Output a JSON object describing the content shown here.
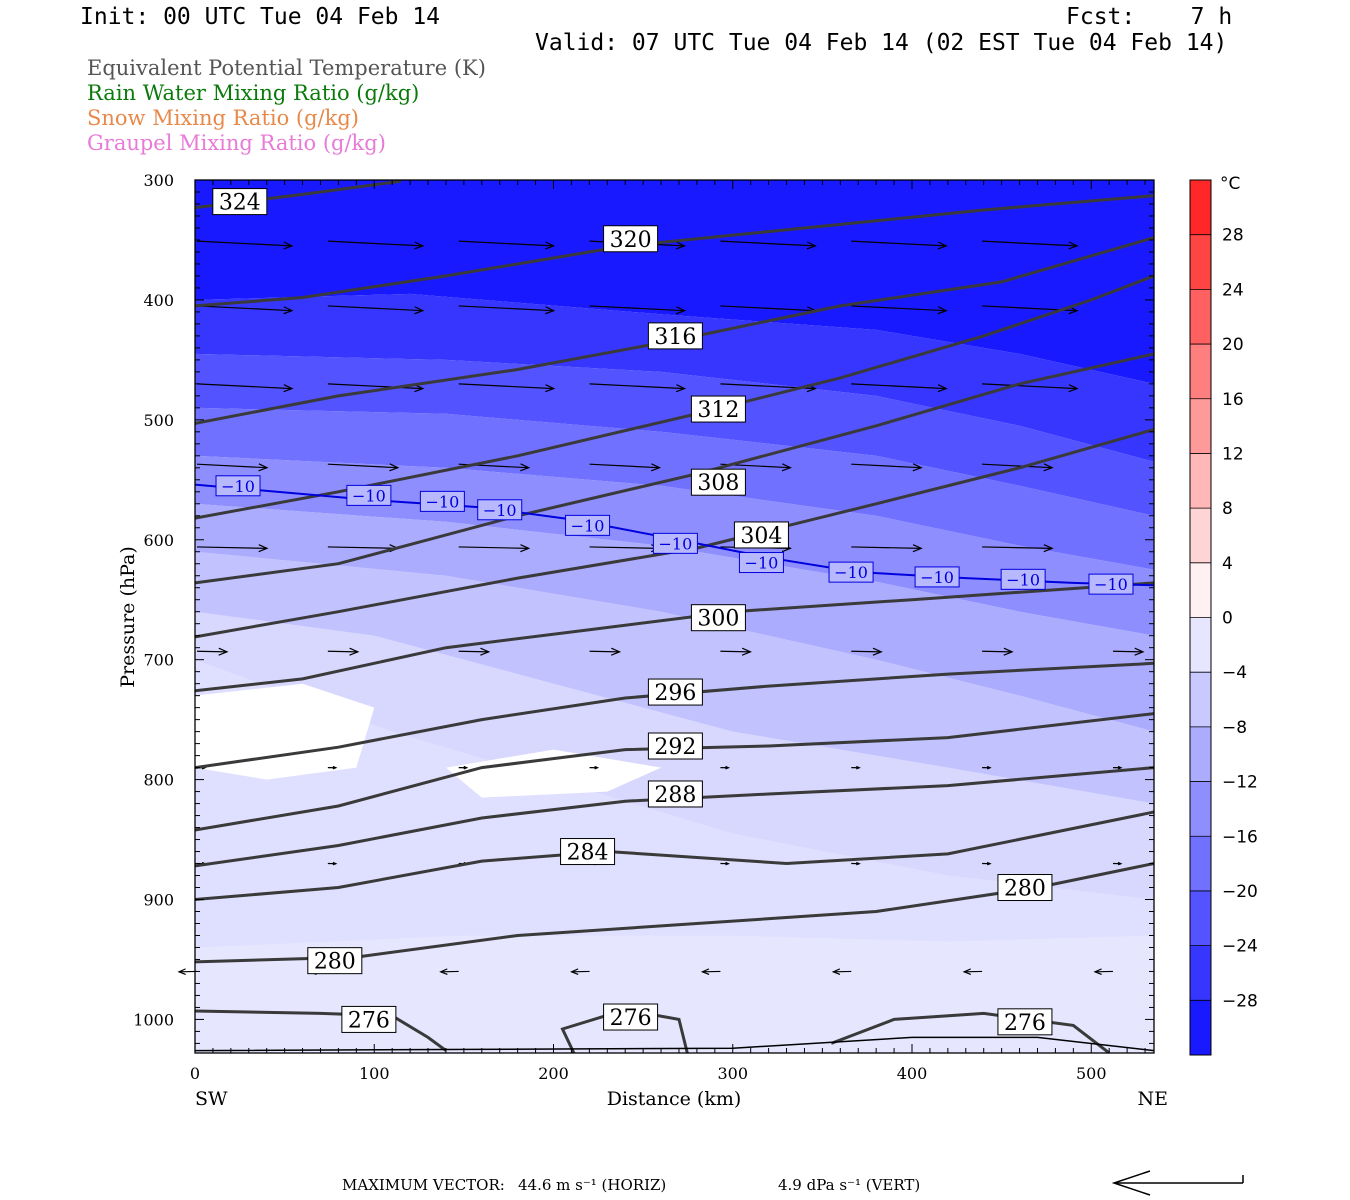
{
  "header": {
    "init": "Init: 00 UTC Tue 04 Feb 14",
    "fcst": "Fcst:    7 h",
    "valid": "Valid: 07 UTC Tue 04 Feb 14 (02 EST Tue 04 Feb 14)"
  },
  "legend": [
    {
      "label": "Equivalent Potential Temperature (K)",
      "color": "#555555"
    },
    {
      "label": "Rain Water Mixing Ratio (g/kg)",
      "color": "#0a7a0a"
    },
    {
      "label": "Snow Mixing Ratio (g/kg)",
      "color": "#e8894a"
    },
    {
      "label": "Graupel Mixing Ratio (g/kg)",
      "color": "#e87ad8"
    }
  ],
  "footer": {
    "max_vector_label": "MAXIMUM VECTOR:",
    "horiz": "44.6 m s⁻¹ (HORIZ)",
    "vert": "4.9 dPa s⁻¹ (VERT)"
  },
  "chart_data": {
    "type": "cross-section",
    "xlabel": "Distance (km)",
    "ylabel": "Pressure (hPa)",
    "xlim": [
      0,
      535
    ],
    "ylim": [
      1028,
      300
    ],
    "x_ticks": [
      0,
      100,
      200,
      300,
      400,
      500
    ],
    "y_ticks": [
      300,
      400,
      500,
      600,
      700,
      800,
      900,
      1000
    ],
    "x_end_labels": {
      "left": "SW",
      "right": "NE"
    },
    "colorbar": {
      "unit": "°C",
      "tick_labels": [
        "28",
        "24",
        "20",
        "16",
        "12",
        "8",
        "4",
        "0",
        "−4",
        "−8",
        "−12",
        "−16",
        "−20",
        "−24",
        "−28"
      ],
      "tick_values": [
        28,
        24,
        20,
        16,
        12,
        8,
        4,
        0,
        -4,
        -8,
        -12,
        -16,
        -20,
        -24,
        -28
      ],
      "range": [
        -32,
        32
      ]
    },
    "theta_e_labels": [
      {
        "text": "324",
        "x": 25,
        "p": 318
      },
      {
        "text": "320",
        "x": 243,
        "p": 349
      },
      {
        "text": "316",
        "x": 268,
        "p": 430
      },
      {
        "text": "312",
        "x": 292,
        "p": 491
      },
      {
        "text": "308",
        "x": 292,
        "p": 552
      },
      {
        "text": "304",
        "x": 316,
        "p": 596
      },
      {
        "text": "300",
        "x": 292,
        "p": 665
      },
      {
        "text": "296",
        "x": 268,
        "p": 727
      },
      {
        "text": "292",
        "x": 268,
        "p": 772
      },
      {
        "text": "288",
        "x": 268,
        "p": 812
      },
      {
        "text": "284",
        "x": 219,
        "p": 860
      },
      {
        "text": "280",
        "x": 463,
        "p": 890
      },
      {
        "text": "280",
        "x": 78,
        "p": 951
      },
      {
        "text": "276",
        "x": 97,
        "p": 1000
      },
      {
        "text": "276",
        "x": 243,
        "p": 998
      },
      {
        "text": "276",
        "x": 463,
        "p": 1002
      }
    ],
    "theta_e_contours": [
      {
        "value": 324,
        "points": [
          [
            0,
            323
          ],
          [
            60,
            312
          ],
          [
            115,
            301
          ]
        ]
      },
      {
        "value": 320,
        "points": [
          [
            0,
            405
          ],
          [
            60,
            398
          ],
          [
            140,
            380
          ],
          [
            240,
            355
          ],
          [
            340,
            340
          ],
          [
            440,
            325
          ],
          [
            535,
            313
          ]
        ]
      },
      {
        "value": 316,
        "points": [
          [
            0,
            503
          ],
          [
            80,
            480
          ],
          [
            180,
            458
          ],
          [
            270,
            433
          ],
          [
            360,
            405
          ],
          [
            450,
            385
          ],
          [
            535,
            348
          ]
        ]
      },
      {
        "value": 312,
        "points": [
          [
            0,
            582
          ],
          [
            80,
            560
          ],
          [
            180,
            530
          ],
          [
            280,
            495
          ],
          [
            360,
            465
          ],
          [
            440,
            430
          ],
          [
            500,
            400
          ],
          [
            535,
            380
          ]
        ]
      },
      {
        "value": 308,
        "points": [
          [
            0,
            636
          ],
          [
            80,
            620
          ],
          [
            180,
            580
          ],
          [
            280,
            545
          ],
          [
            380,
            505
          ],
          [
            460,
            470
          ],
          [
            535,
            445
          ]
        ]
      },
      {
        "value": 304,
        "points": [
          [
            0,
            681
          ],
          [
            80,
            660
          ],
          [
            180,
            632
          ],
          [
            280,
            607
          ],
          [
            380,
            570
          ],
          [
            460,
            540
          ],
          [
            535,
            508
          ]
        ]
      },
      {
        "value": 300,
        "points": [
          [
            0,
            726
          ],
          [
            60,
            716
          ],
          [
            140,
            690
          ],
          [
            220,
            675
          ],
          [
            300,
            660
          ],
          [
            400,
            650
          ],
          [
            535,
            636
          ]
        ]
      },
      {
        "value": 296,
        "points": [
          [
            0,
            790
          ],
          [
            80,
            773
          ],
          [
            160,
            750
          ],
          [
            240,
            732
          ],
          [
            320,
            722
          ],
          [
            420,
            712
          ],
          [
            535,
            703
          ]
        ]
      },
      {
        "value": 292,
        "points": [
          [
            0,
            842
          ],
          [
            80,
            822
          ],
          [
            160,
            790
          ],
          [
            240,
            775
          ],
          [
            320,
            772
          ],
          [
            420,
            765
          ],
          [
            535,
            745
          ]
        ]
      },
      {
        "value": 288,
        "points": [
          [
            0,
            872
          ],
          [
            80,
            855
          ],
          [
            160,
            832
          ],
          [
            240,
            818
          ],
          [
            320,
            812
          ],
          [
            420,
            805
          ],
          [
            535,
            790
          ]
        ]
      },
      {
        "value": 284,
        "points": [
          [
            0,
            900
          ],
          [
            80,
            890
          ],
          [
            160,
            868
          ],
          [
            230,
            860
          ],
          [
            330,
            870
          ],
          [
            420,
            862
          ],
          [
            535,
            827
          ]
        ]
      },
      {
        "value": 280,
        "points": [
          [
            0,
            952
          ],
          [
            90,
            948
          ],
          [
            180,
            930
          ],
          [
            280,
            920
          ],
          [
            380,
            910
          ],
          [
            470,
            890
          ],
          [
            535,
            870
          ]
        ]
      },
      {
        "value": 276,
        "points": [
          [
            0,
            993
          ],
          [
            70,
            995
          ],
          [
            110,
            997
          ],
          [
            130,
            1015
          ],
          [
            140,
            1026
          ]
        ]
      },
      {
        "value": 276,
        "points": [
          [
            212,
            1030
          ],
          [
            205,
            1008
          ],
          [
            240,
            992
          ],
          [
            270,
            1000
          ],
          [
            275,
            1030
          ]
        ]
      },
      {
        "value": 276,
        "points": [
          [
            355,
            1020
          ],
          [
            390,
            1000
          ],
          [
            440,
            995
          ],
          [
            490,
            1005
          ],
          [
            510,
            1028
          ]
        ]
      }
    ],
    "isotherm_minus10": {
      "value": -10,
      "points": [
        [
          0,
          554
        ],
        [
          100,
          567
        ],
        [
          160,
          573
        ],
        [
          210,
          583
        ],
        [
          270,
          600
        ],
        [
          320,
          615
        ],
        [
          370,
          627
        ],
        [
          430,
          632
        ],
        [
          490,
          636
        ],
        [
          535,
          638
        ]
      ],
      "label_text": "−10",
      "label_positions": [
        [
          24,
          555
        ],
        [
          97,
          563
        ],
        [
          138,
          568
        ],
        [
          170,
          575
        ],
        [
          219,
          588
        ],
        [
          268,
          603
        ],
        [
          316,
          619
        ],
        [
          366,
          627
        ],
        [
          414,
          631
        ],
        [
          462,
          633
        ],
        [
          511,
          637
        ]
      ]
    },
    "temperature_bands": [
      {
        "upper": [
          [
            0,
            300
          ],
          [
            535,
            300
          ]
        ],
        "lower": [
          [
            0,
            400
          ],
          [
            120,
            395
          ],
          [
            260,
            412
          ],
          [
            380,
            425
          ],
          [
            460,
            445
          ],
          [
            535,
            470
          ]
        ],
        "temp": -30
      },
      {
        "upper": [
          [
            0,
            400
          ],
          [
            120,
            395
          ],
          [
            260,
            412
          ],
          [
            380,
            425
          ],
          [
            460,
            445
          ],
          [
            535,
            470
          ]
        ],
        "lower": [
          [
            0,
            445
          ],
          [
            140,
            450
          ],
          [
            260,
            460
          ],
          [
            380,
            480
          ],
          [
            460,
            505
          ],
          [
            535,
            535
          ]
        ],
        "temp": -26
      },
      {
        "upper": [
          [
            0,
            445
          ],
          [
            140,
            450
          ],
          [
            260,
            460
          ],
          [
            380,
            480
          ],
          [
            460,
            505
          ],
          [
            535,
            535
          ]
        ],
        "lower": [
          [
            0,
            490
          ],
          [
            140,
            495
          ],
          [
            260,
            510
          ],
          [
            380,
            530
          ],
          [
            460,
            555
          ],
          [
            535,
            580
          ]
        ],
        "temp": -22
      },
      {
        "upper": [
          [
            0,
            490
          ],
          [
            140,
            495
          ],
          [
            260,
            510
          ],
          [
            380,
            530
          ],
          [
            460,
            555
          ],
          [
            535,
            580
          ]
        ],
        "lower": [
          [
            0,
            530
          ],
          [
            140,
            540
          ],
          [
            260,
            555
          ],
          [
            380,
            580
          ],
          [
            460,
            605
          ],
          [
            535,
            625
          ]
        ],
        "temp": -18
      },
      {
        "upper": [
          [
            0,
            530
          ],
          [
            140,
            540
          ],
          [
            260,
            555
          ],
          [
            380,
            580
          ],
          [
            460,
            605
          ],
          [
            535,
            625
          ]
        ],
        "lower": [
          [
            0,
            570
          ],
          [
            140,
            585
          ],
          [
            260,
            605
          ],
          [
            380,
            635
          ],
          [
            460,
            660
          ],
          [
            535,
            680
          ]
        ],
        "temp": -14
      },
      {
        "upper": [
          [
            0,
            570
          ],
          [
            140,
            585
          ],
          [
            260,
            605
          ],
          [
            380,
            635
          ],
          [
            460,
            660
          ],
          [
            535,
            680
          ]
        ],
        "lower": [
          [
            0,
            610
          ],
          [
            140,
            630
          ],
          [
            260,
            660
          ],
          [
            380,
            700
          ],
          [
            460,
            730
          ],
          [
            535,
            760
          ]
        ],
        "temp": -10
      },
      {
        "upper": [
          [
            0,
            610
          ],
          [
            140,
            630
          ],
          [
            260,
            660
          ],
          [
            380,
            700
          ],
          [
            460,
            730
          ],
          [
            535,
            760
          ]
        ],
        "lower": [
          [
            0,
            660
          ],
          [
            100,
            680
          ],
          [
            200,
            720
          ],
          [
            300,
            760
          ],
          [
            420,
            790
          ],
          [
            535,
            820
          ]
        ],
        "temp": -7
      },
      {
        "upper": [
          [
            0,
            660
          ],
          [
            100,
            680
          ],
          [
            200,
            720
          ],
          [
            300,
            760
          ],
          [
            420,
            790
          ],
          [
            535,
            820
          ]
        ],
        "lower": [
          [
            0,
            700
          ],
          [
            110,
            760
          ],
          [
            200,
            800
          ],
          [
            300,
            845
          ],
          [
            420,
            880
          ],
          [
            535,
            900
          ]
        ],
        "temp": -4
      },
      {
        "upper": [
          [
            0,
            700
          ],
          [
            110,
            760
          ],
          [
            200,
            800
          ],
          [
            300,
            845
          ],
          [
            420,
            880
          ],
          [
            535,
            900
          ]
        ],
        "lower": [
          [
            0,
            1028
          ],
          [
            535,
            1028
          ]
        ],
        "temp": -3
      },
      {
        "upper": [
          [
            0,
            940
          ],
          [
            150,
            930
          ],
          [
            300,
            930
          ],
          [
            420,
            935
          ],
          [
            535,
            930
          ]
        ],
        "lower": [
          [
            0,
            1028
          ],
          [
            535,
            1028
          ]
        ],
        "temp": -2
      },
      {
        "upper": [
          [
            0,
            730
          ],
          [
            60,
            720
          ],
          [
            100,
            740
          ],
          [
            90,
            790
          ],
          [
            40,
            800
          ],
          [
            0,
            790
          ]
        ],
        "lower": [
          [
            0,
            790
          ],
          [
            0,
            730
          ]
        ],
        "temp": 0
      },
      {
        "upper": [
          [
            140,
            790
          ],
          [
            200,
            775
          ],
          [
            260,
            790
          ],
          [
            230,
            810
          ],
          [
            160,
            815
          ]
        ],
        "lower": [
          [
            140,
            790
          ]
        ],
        "temp": 0
      }
    ],
    "wind_vectors": [
      {
        "x": 0,
        "p": 351,
        "u": 1.0,
        "w": 0.0
      }
    ],
    "max_vector_direction": "left"
  }
}
